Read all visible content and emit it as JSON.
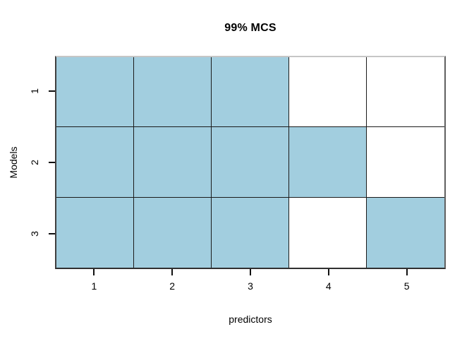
{
  "title": "99% MCS",
  "axes": {
    "x": {
      "label": "predictors",
      "ticks": [
        "1",
        "2",
        "3",
        "4",
        "5"
      ]
    },
    "y": {
      "label": "Models",
      "ticks": [
        "1",
        "2",
        "3"
      ]
    }
  },
  "colors": {
    "cell_filled": "#a2cedf",
    "cell_empty": "#ffffff",
    "grid_line": "#1b1b1b",
    "box_top": "#c6c6c6",
    "box_left": "#3f3f3f",
    "box_right": "#606060",
    "box_bottom": "#303030",
    "tick": "#111111",
    "text": "#000000"
  },
  "chart_data": {
    "type": "heatmap",
    "title": "99% MCS",
    "xlabel": "predictors",
    "ylabel": "Models",
    "x_categories": [
      1,
      2,
      3,
      4,
      5
    ],
    "y_categories": [
      1,
      2,
      3
    ],
    "matrix": [
      [
        1,
        1,
        1,
        0,
        0
      ],
      [
        1,
        1,
        1,
        1,
        0
      ],
      [
        1,
        1,
        1,
        0,
        1
      ]
    ],
    "cell_value_meaning": "1 = lightblue filled cell, 0 = white cell",
    "grid": true,
    "legend_position": "none"
  }
}
